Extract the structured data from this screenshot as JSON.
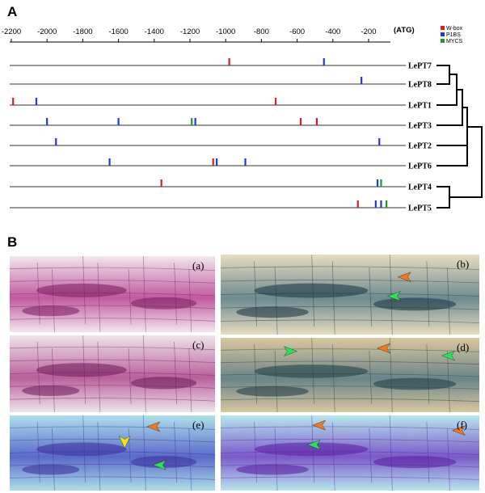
{
  "panel_a": {
    "label": "A",
    "axis": {
      "ticks": [
        -2200,
        -2000,
        -1800,
        -1600,
        -1400,
        -1200,
        -1000,
        -800,
        -600,
        -400,
        -200
      ],
      "end_label": "(ATG)"
    },
    "legend": [
      {
        "label": "W-box",
        "color": "#e41a1c"
      },
      {
        "label": "P1BS",
        "color": "#1f3ae0"
      },
      {
        "label": "MYCS",
        "color": "#1a9a2a"
      }
    ],
    "genes": [
      {
        "name": "LePT7",
        "elements": [
          {
            "pos": -980,
            "type": "W-box"
          },
          {
            "pos": -450,
            "type": "P1BS"
          }
        ]
      },
      {
        "name": "LePT8",
        "elements": [
          {
            "pos": -240,
            "type": "P1BS"
          }
        ]
      },
      {
        "name": "LePT1",
        "elements": [
          {
            "pos": -2190,
            "type": "W-box"
          },
          {
            "pos": -2060,
            "type": "P1BS"
          },
          {
            "pos": -720,
            "type": "W-box"
          }
        ]
      },
      {
        "name": "LePT3",
        "elements": [
          {
            "pos": -2000,
            "type": "P1BS"
          },
          {
            "pos": -1600,
            "type": "P1BS"
          },
          {
            "pos": -1190,
            "type": "MYCS"
          },
          {
            "pos": -1170,
            "type": "P1BS"
          },
          {
            "pos": -580,
            "type": "W-box"
          },
          {
            "pos": -490,
            "type": "W-box"
          }
        ]
      },
      {
        "name": "LePT2",
        "elements": [
          {
            "pos": -1950,
            "type": "P1BS"
          },
          {
            "pos": -140,
            "type": "P1BS"
          }
        ]
      },
      {
        "name": "LePT6",
        "elements": [
          {
            "pos": -1650,
            "type": "P1BS"
          },
          {
            "pos": -1070,
            "type": "W-box"
          },
          {
            "pos": -1050,
            "type": "P1BS"
          },
          {
            "pos": -890,
            "type": "P1BS"
          }
        ]
      },
      {
        "name": "LePT4",
        "elements": [
          {
            "pos": -1360,
            "type": "W-box"
          },
          {
            "pos": -150,
            "type": "P1BS"
          },
          {
            "pos": -130,
            "type": "MYCS"
          }
        ]
      },
      {
        "name": "LePT5",
        "elements": [
          {
            "pos": -260,
            "type": "W-box"
          },
          {
            "pos": -160,
            "type": "P1BS"
          },
          {
            "pos": -130,
            "type": "P1BS"
          },
          {
            "pos": -100,
            "type": "MYCS"
          }
        ]
      }
    ]
  },
  "panel_b": {
    "label": "B",
    "photos": [
      {
        "label": "(a)",
        "palette": [
          "#f2e6ee",
          "#c05aa0",
          "#7a1a5c"
        ],
        "arrows": []
      },
      {
        "label": "(b)",
        "palette": [
          "#e8dcc0",
          "#6e8a90",
          "#16323e"
        ],
        "arrows": [
          {
            "kind": "orange",
            "dir": "left"
          },
          {
            "kind": "green",
            "dir": "left"
          }
        ]
      },
      {
        "label": "(c)",
        "palette": [
          "#efe4ea",
          "#b8609c",
          "#6e1858"
        ],
        "arrows": []
      },
      {
        "label": "(d)",
        "palette": [
          "#d8c8a0",
          "#6a8488",
          "#1e3a42"
        ],
        "arrows": [
          {
            "kind": "green",
            "dir": "right"
          },
          {
            "kind": "orange",
            "dir": "left"
          },
          {
            "kind": "green",
            "dir": "left"
          }
        ]
      },
      {
        "label": "(e)",
        "palette": [
          "#aee0ea",
          "#5a6ac8",
          "#3a2a9a"
        ],
        "arrows": [
          {
            "kind": "orange",
            "dir": "left"
          },
          {
            "kind": "yellow",
            "dir": "down"
          },
          {
            "kind": "green",
            "dir": "left"
          }
        ]
      },
      {
        "label": "(f)",
        "palette": [
          "#b8e6ee",
          "#7a5ac8",
          "#5a1aa0"
        ],
        "arrows": [
          {
            "kind": "orange",
            "dir": "left"
          },
          {
            "kind": "orange",
            "dir": "left"
          },
          {
            "kind": "green",
            "dir": "left"
          }
        ]
      }
    ],
    "arrow_colors": {
      "orange": "#f07820",
      "green": "#2ee05a",
      "yellow": "#f5e21a"
    }
  }
}
